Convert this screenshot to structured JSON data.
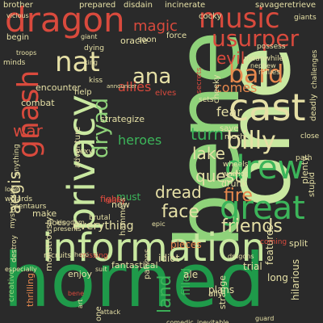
{
  "palette": {
    "background": "#2a2a2a",
    "dark_green": "#1f9a4a",
    "mid_green": "#3cb55a",
    "light_green": "#8fd27a",
    "pale_green": "#c9e8a0",
    "yellow": "#e6e0a6",
    "orange": "#e8894e",
    "red": "#d94a3d",
    "dark_red": "#a8332c"
  },
  "words": [
    "horned",
    "bene",
    "one",
    "information",
    "privacy",
    "dragon",
    "music",
    "cast",
    "drew",
    "great",
    "usurper",
    "bard",
    "billy",
    "nat",
    "ana",
    "gnash",
    "dryad",
    "fire",
    "friends",
    "face",
    "dread",
    "lake",
    "quest",
    "aegis",
    "everything",
    "heroes",
    "turn",
    "evil",
    "magic",
    "allies",
    "land",
    "comes",
    "war",
    "fear",
    "filled",
    "must",
    "fantastical",
    "idiot",
    "pieces",
    "trial",
    "long",
    "ale",
    "strange",
    "plans",
    "features",
    "encounter",
    "combat",
    "centaurs",
    "wizards",
    "mysterious",
    "thrilling",
    "creative",
    "monstrously",
    "enjoy",
    "destroy",
    "missing",
    "recruits",
    "make",
    "does",
    "new",
    "strategize",
    "fight",
    "help",
    "adventure",
    "save",
    "much",
    "warrior",
    "drunk",
    "wheels",
    "split",
    "coming",
    "brother",
    "prepared",
    "disdain",
    "incinerate",
    "savage",
    "retrieve",
    "giants",
    "vicious",
    "cocky",
    "oracle",
    "soon",
    "force",
    "possess",
    "meanwhile",
    "rallies",
    "nephew",
    "challenges",
    "secrets",
    "cheeky",
    "deadly",
    "close",
    "stupid",
    "plenty",
    "path",
    "ally",
    "hilarious",
    "patrons",
    "sexy",
    "anything",
    "begin",
    "minds",
    "troops",
    "dying",
    "king",
    "giant",
    "elves",
    "kiss",
    "announcer",
    "sets",
    "hammers",
    "brutal",
    "presents",
    "many",
    "epic",
    "dragons",
    "guard",
    "attack",
    "comedic",
    "inevitable",
    "especially",
    "love",
    "hero",
    "one",
    "art",
    "suit",
    "bene",
    "kingdom",
    "true"
  ]
}
